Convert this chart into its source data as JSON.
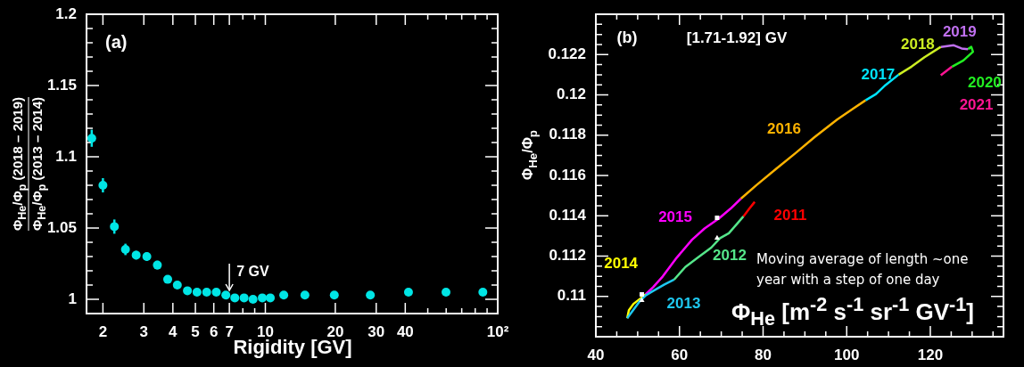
{
  "chart_data": [
    {
      "type": "scatter",
      "xlabel": "Rigidity [GV]",
      "ylabel": "Φ$_{He}$/Φ$_{p}$ (2018 – 2019)\nΦ$_{He}$/Φ$_{p}$ (2013 – 2014)",
      "log": "x",
      "marker": "circle",
      "color": "#00e5e5",
      "x": [
        1.79,
        2.0,
        2.24,
        2.5,
        2.78,
        3.09,
        3.43,
        3.8,
        4.18,
        4.62,
        5.08,
        5.59,
        6.15,
        6.76,
        7.39,
        8.1,
        8.85,
        9.7,
        10.5,
        12,
        14.8,
        19.8,
        28.3,
        41.3,
        59.9,
        86.3
      ],
      "values": [
        1.113,
        1.08,
        1.051,
        1.035,
        1.031,
        1.03,
        1.024,
        1.014,
        1.01,
        1.006,
        1.005,
        1.005,
        1.005,
        1.003,
        1.001,
        1.001,
        1.0,
        1.001,
        1.001,
        1.003,
        1.003,
        1.003,
        1.003,
        1.005,
        1.005,
        1.005
      ],
      "errors": [
        0.006,
        0.005,
        0.005,
        0.004,
        0.003,
        0.003,
        0.003,
        0.002,
        0.002,
        null,
        null,
        null,
        null,
        null,
        null,
        null,
        null,
        null,
        null,
        null,
        null,
        null,
        null,
        null,
        null,
        null
      ],
      "xlim": [
        1.7,
        100
      ],
      "xticks": [
        2,
        3,
        4,
        5,
        6,
        7,
        {
          "value": 8,
          "label": null
        },
        {
          "value": 9,
          "label": null
        },
        10,
        20,
        30,
        40,
        {
          "value": 50,
          "label": null
        },
        {
          "value": 60,
          "label": null
        },
        {
          "value": 70,
          "label": null
        },
        {
          "value": 80,
          "label": null
        },
        {
          "value": 90,
          "label": null
        },
        {
          "value": 100,
          "label": "10²"
        }
      ],
      "ylim": [
        0.99,
        1.2
      ],
      "yticks": [
        {
          "value": 0.99,
          "label": null
        },
        1,
        {
          "value": 1.01,
          "label": null
        },
        {
          "value": 1.02,
          "label": null
        },
        {
          "value": 1.03,
          "label": null
        },
        {
          "value": 1.04,
          "label": null
        },
        1.05,
        {
          "value": 1.06,
          "label": null
        },
        {
          "value": 1.07,
          "label": null
        },
        {
          "value": 1.08,
          "label": null
        },
        {
          "value": 1.09,
          "label": null
        },
        1.1,
        {
          "value": 1.11,
          "label": null
        },
        {
          "value": 1.12,
          "label": null
        },
        {
          "value": 1.13,
          "label": null
        },
        {
          "value": 1.14,
          "label": null
        },
        1.15,
        {
          "value": 1.16,
          "label": null
        },
        {
          "value": 1.17,
          "label": null
        },
        {
          "value": 1.18,
          "label": null
        },
        {
          "value": 1.19,
          "label": null
        },
        1.2
      ],
      "annotations": [
        "(a)",
        {
          "text": "7 GV",
          "x": 7,
          "y": 1.005
        }
      ]
    },
    {
      "type": "line",
      "xlabel": "Φ$_{He}$ [m$^{-2}$ s$^{-1}$ sr$^{-1}$ GV$^{-1}$]",
      "ylabel": "Φ$_{He}$/Φ$_{p}$",
      "xlim": [
        40,
        137.5
      ],
      "xticks": [
        40,
        {
          "value": 45,
          "label": null
        },
        {
          "value": 50,
          "label": null
        },
        {
          "value": 55,
          "label": null
        },
        60,
        {
          "value": 65,
          "label": null
        },
        {
          "value": 70,
          "label": null
        },
        {
          "value": 75,
          "label": null
        },
        80,
        {
          "value": 85,
          "label": null
        },
        {
          "value": 90,
          "label": null
        },
        {
          "value": 95,
          "label": null
        },
        100,
        {
          "value": 105,
          "label": null
        },
        {
          "value": 110,
          "label": null
        },
        {
          "value": 115,
          "label": null
        },
        120,
        {
          "value": 125,
          "label": null
        },
        {
          "value": 130,
          "label": null
        },
        {
          "value": 135,
          "label": null
        }
      ],
      "ylim": [
        0.108,
        0.124
      ],
      "yticks": [
        {
          "value": 0.1085,
          "label": null
        },
        {
          "value": 0.109,
          "label": null
        },
        {
          "value": 0.1095,
          "label": null
        },
        0.11,
        {
          "value": 0.1105,
          "label": null
        },
        {
          "value": 0.111,
          "label": null
        },
        {
          "value": 0.1115,
          "label": null
        },
        0.112,
        {
          "value": 0.1125,
          "label": null
        },
        {
          "value": 0.113,
          "label": null
        },
        {
          "value": 0.1135,
          "label": null
        },
        0.114,
        {
          "value": 0.1145,
          "label": null
        },
        {
          "value": 0.115,
          "label": null
        },
        {
          "value": 0.1155,
          "label": null
        },
        0.116,
        {
          "value": 0.1165,
          "label": null
        },
        {
          "value": 0.117,
          "label": null
        },
        {
          "value": 0.1175,
          "label": null
        },
        0.118,
        {
          "value": 0.1185,
          "label": null
        },
        {
          "value": 0.119,
          "label": null
        },
        {
          "value": 0.1195,
          "label": null
        },
        0.12,
        {
          "value": 0.1205,
          "label": null
        },
        {
          "value": 0.121,
          "label": null
        },
        {
          "value": 0.1215,
          "label": null
        },
        0.122,
        {
          "value": 0.1225,
          "label": null
        },
        {
          "value": 0.123,
          "label": null
        },
        {
          "value": 0.1235,
          "label": null
        }
      ],
      "series": [
        {
          "name": "2011",
          "color": "#ff0000",
          "x": [
            78.0,
            76.7,
            75.3
          ],
          "values": [
            0.11469,
            0.11435,
            0.11397
          ]
        },
        {
          "name": "2012",
          "color": "#55e68a",
          "x": [
            75.3,
            73.8,
            71.8,
            69.7,
            67.6,
            64.5,
            61.4,
            58.7
          ],
          "values": [
            0.11397,
            0.11361,
            0.11313,
            0.11289,
            0.11242,
            0.11194,
            0.11146,
            0.11083
          ]
        },
        {
          "name": "2013",
          "color": "#1ec8f0",
          "x": [
            58.7,
            56.4,
            53.7,
            52.0,
            50.6,
            47.5
          ],
          "values": [
            0.11083,
            0.11059,
            0.11027,
            0.11006,
            0.10979,
            0.10892
          ]
        },
        {
          "name": "2014",
          "color": "#ffff00",
          "x": [
            47.5,
            47.9,
            49.0,
            51.0,
            51.9
          ],
          "values": [
            0.10892,
            0.10932,
            0.10963,
            0.10995,
            0.1101
          ]
        },
        {
          "name": "2015",
          "color": "#ff00ff",
          "x": [
            51.9,
            53.7,
            56.0,
            59.1,
            63.0,
            66.0,
            69.5,
            72.2,
            74.7
          ],
          "values": [
            0.1101,
            0.11046,
            0.11099,
            0.11186,
            0.11281,
            0.11337,
            0.11388,
            0.11435,
            0.11485
          ]
        },
        {
          "name": "2016",
          "color": "#ffb300",
          "x": [
            74.7,
            78.4,
            83.0,
            87.7,
            92.3,
            97.7,
            101.6,
            104.5
          ],
          "values": [
            0.11485,
            0.11552,
            0.11631,
            0.1171,
            0.1179,
            0.11877,
            0.11933,
            0.11973
          ]
        },
        {
          "name": "2017",
          "color": "#00e5ff",
          "x": [
            104.5,
            107.0,
            109.3,
            112.4
          ],
          "values": [
            0.11973,
            0.12004,
            0.12049,
            0.121
          ]
        },
        {
          "name": "2018",
          "color": "#ccee22",
          "x": [
            112.4,
            115.5,
            118.6,
            122.5
          ],
          "values": [
            0.121,
            0.1214,
            0.12187,
            0.12238
          ]
        },
        {
          "name": "2019",
          "color": "#c070f0",
          "x": [
            122.5,
            125.6,
            127.5,
            129.0
          ],
          "values": [
            0.12238,
            0.12246,
            0.1223,
            0.12227
          ]
        },
        {
          "name": "2020",
          "color": "#22ee22",
          "x": [
            129.0,
            129.8,
            130.2,
            127.9,
            125.2
          ],
          "values": [
            0.12227,
            0.12238,
            0.12214,
            0.12171,
            0.1214
          ]
        },
        {
          "name": "2021",
          "color": "#ff1493",
          "x": [
            125.2,
            122.5
          ],
          "values": [
            0.1214,
            0.12097
          ]
        },
        {
          "type": "scatter",
          "marker": "square",
          "color": "#ffffff",
          "x": [
            51.0,
            69.0
          ],
          "values": [
            0.1101,
            0.1139
          ]
        },
        {
          "type": "scatter",
          "marker": "triangle",
          "color": "#ffffff",
          "x": [
            51.0,
            69.0
          ],
          "values": [
            0.1098,
            0.1129
          ]
        }
      ],
      "annotations": [
        "(b)",
        "[1.71-1.92] GV",
        "Moving average of length ~one year with a step of one day"
      ]
    }
  ]
}
